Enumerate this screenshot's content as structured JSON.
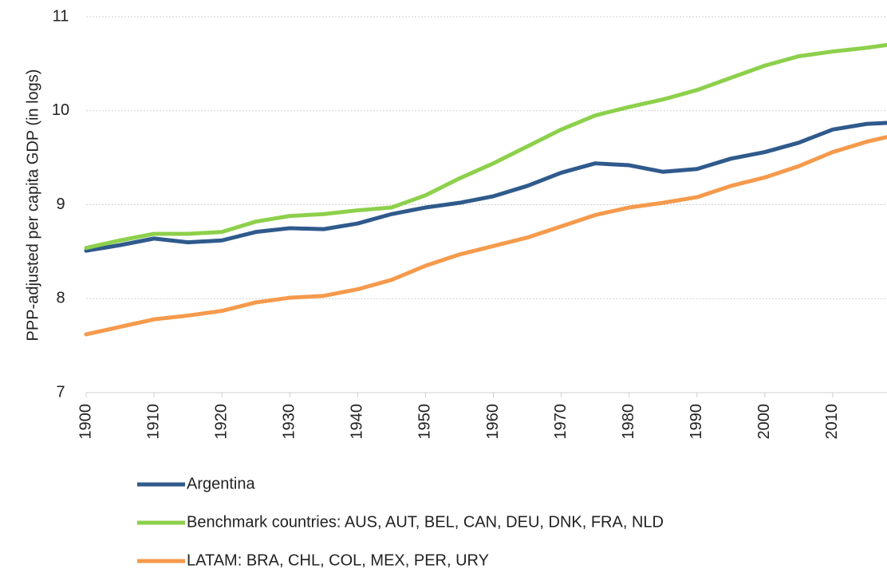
{
  "chart_data": {
    "type": "line",
    "y_label": "PPP-adjusted per capita GDP (in logs)",
    "x": [
      1900,
      1905,
      1910,
      1915,
      1920,
      1925,
      1930,
      1935,
      1940,
      1945,
      1950,
      1955,
      1960,
      1965,
      1970,
      1975,
      1980,
      1985,
      1990,
      1995,
      2000,
      2005,
      2010,
      2015,
      2018
    ],
    "series": [
      {
        "name": "Argentina",
        "color": "#2f5a8c",
        "values": [
          8.51,
          8.57,
          8.64,
          8.6,
          8.62,
          8.71,
          8.75,
          8.74,
          8.8,
          8.9,
          8.97,
          9.02,
          9.09,
          9.2,
          9.34,
          9.44,
          9.42,
          9.35,
          9.38,
          9.49,
          9.56,
          9.66,
          9.8,
          9.86,
          9.87
        ]
      },
      {
        "name": "Benchmark countries: AUS, AUT, BEL, CAN, DEU, DNK, FRA, NLD",
        "color": "#8dd04b",
        "values": [
          8.54,
          8.62,
          8.69,
          8.69,
          8.71,
          8.82,
          8.88,
          8.9,
          8.94,
          8.97,
          9.1,
          9.28,
          9.44,
          9.62,
          9.8,
          9.95,
          10.04,
          10.12,
          10.22,
          10.35,
          10.48,
          10.58,
          10.63,
          10.67,
          10.7
        ]
      },
      {
        "name": "LATAM: BRA, CHL, COL, MEX, PER, URY",
        "color": "#f59a4c",
        "values": [
          7.62,
          7.7,
          7.78,
          7.82,
          7.87,
          7.96,
          8.01,
          8.03,
          8.1,
          8.2,
          8.35,
          8.47,
          8.56,
          8.65,
          8.77,
          8.89,
          8.97,
          9.02,
          9.08,
          9.2,
          9.29,
          9.41,
          9.56,
          9.67,
          9.72
        ]
      }
    ],
    "xlim": [
      1900,
      2018
    ],
    "xticks": [
      1900,
      1910,
      1920,
      1930,
      1940,
      1950,
      1960,
      1970,
      1980,
      1990,
      2000,
      2010
    ],
    "ylim": [
      7,
      11
    ],
    "yticks": [
      7,
      8,
      9,
      10,
      11
    ],
    "grid": true,
    "legend": "bottom"
  }
}
